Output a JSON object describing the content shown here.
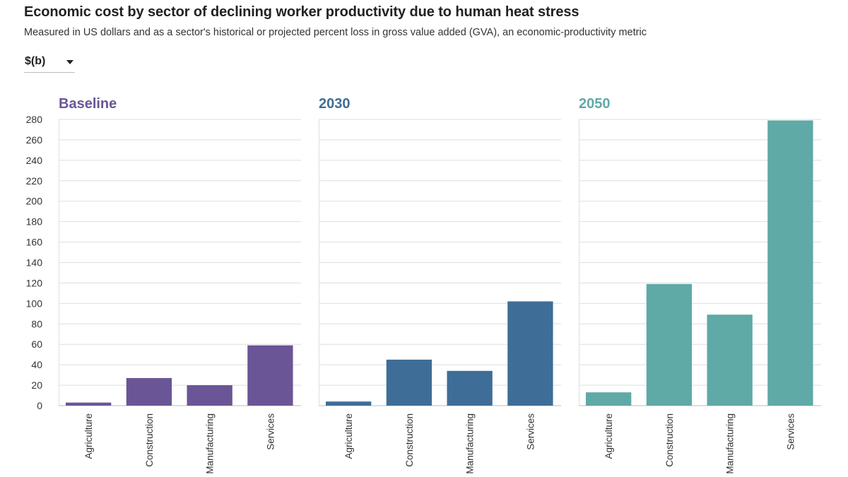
{
  "title": "Economic cost by sector of declining worker productivity due to human heat stress",
  "subtitle": "Measured in US dollars and as a sector's historical or projected percent loss in gross value added (GVA), an economic-productivity metric",
  "dropdown": {
    "selected": "$(b)",
    "icon": "caret-down-icon"
  },
  "chart_data": [
    {
      "type": "bar",
      "title": "Baseline",
      "color": "#6a5596",
      "categories": [
        "Agriculture",
        "Construction",
        "Manufacturing",
        "Services"
      ],
      "values": [
        3,
        27,
        20,
        59
      ],
      "ylim": [
        0,
        280
      ],
      "yticks": [
        0,
        20,
        40,
        60,
        80,
        100,
        120,
        140,
        160,
        180,
        200,
        220,
        240,
        260,
        280
      ],
      "grid": true
    },
    {
      "type": "bar",
      "title": "2030",
      "color": "#3e6e97",
      "categories": [
        "Agriculture",
        "Construction",
        "Manufacturing",
        "Services"
      ],
      "values": [
        4,
        45,
        34,
        102
      ],
      "ylim": [
        0,
        280
      ],
      "grid": true
    },
    {
      "type": "bar",
      "title": "2050",
      "color": "#5fa9a7",
      "categories": [
        "Agriculture",
        "Construction",
        "Manufacturing",
        "Services"
      ],
      "values": [
        13,
        119,
        89,
        279
      ],
      "ylim": [
        0,
        280
      ],
      "grid": true
    }
  ]
}
